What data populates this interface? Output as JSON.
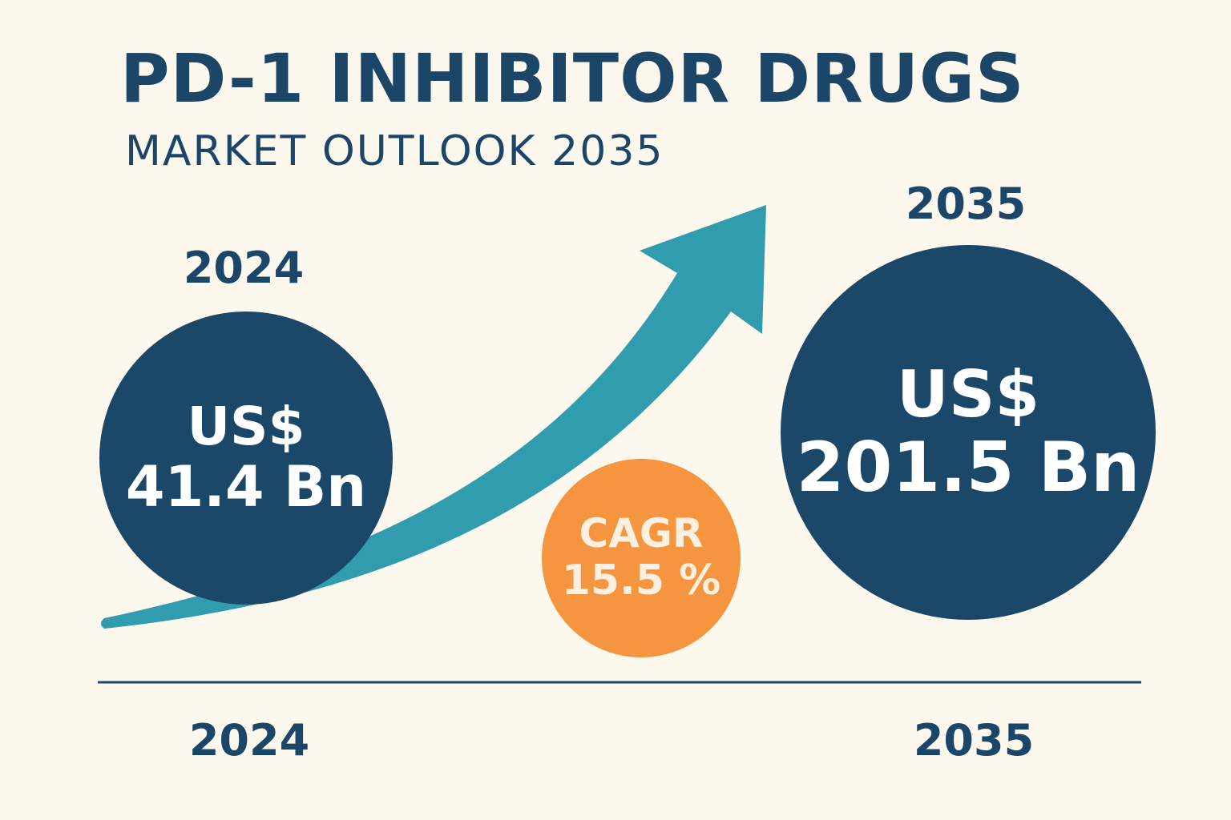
{
  "title": "PD-1 INHIBITOR DRUGS",
  "subtitle": "MARKET OUTLOOK 2035",
  "colors": {
    "background": "#fcf8ee",
    "primary": "#1b4868",
    "arrow": "#309cad",
    "accent": "#f6953f",
    "circle_text": "#ffffff"
  },
  "start": {
    "year": "2024",
    "currency": "US$",
    "value": "41.4 Bn"
  },
  "end": {
    "year": "2035",
    "currency": "US$",
    "value": "201.5 Bn"
  },
  "cagr": {
    "label": "CAGR",
    "value": "15.5 %"
  },
  "axis": {
    "start_label": "2024",
    "end_label": "2035"
  },
  "chart_data": {
    "type": "bar",
    "title": "PD-1 INHIBITOR DRUGS",
    "subtitle": "MARKET OUTLOOK 2035",
    "categories": [
      "2024",
      "2035"
    ],
    "values": [
      41.4,
      201.5
    ],
    "unit": "US$ Bn",
    "annotations": [
      "CAGR 15.5 %"
    ],
    "trend": "increasing"
  }
}
